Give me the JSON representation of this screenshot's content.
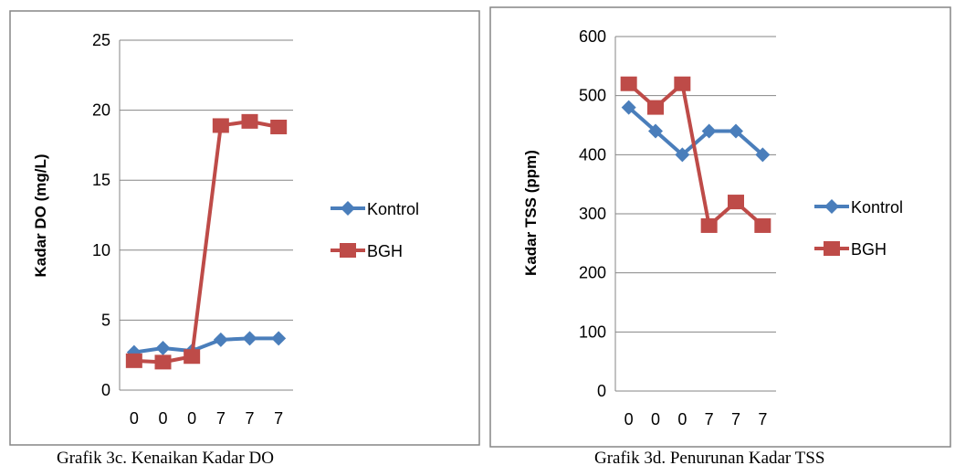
{
  "colors": {
    "kontrol": "#4A7EBB",
    "bgh": "#BE4B48",
    "grid": "#868686",
    "border": "#868686"
  },
  "captions": {
    "left": "Grafik 3c. Kenaikan Kadar DO",
    "right": "Grafik 3d. Penurunan Kadar TSS"
  },
  "chart_data": [
    {
      "type": "line",
      "categories": [
        "0",
        "0",
        "0",
        "7",
        "7",
        "7"
      ],
      "ylabel": "Kadar DO (mg/L)",
      "xlabel": "",
      "ylim": [
        0,
        25
      ],
      "yticks": [
        "0",
        "5",
        "10",
        "15",
        "20",
        "25"
      ],
      "grid": true,
      "legend_position": "right",
      "series": [
        {
          "name": "Kontrol",
          "marker": "diamond",
          "values": [
            2.7,
            3.0,
            2.8,
            3.6,
            3.7,
            3.7
          ]
        },
        {
          "name": "BGH",
          "marker": "square",
          "values": [
            2.1,
            2.0,
            2.4,
            18.9,
            19.2,
            18.8
          ]
        }
      ]
    },
    {
      "type": "line",
      "categories": [
        "0",
        "0",
        "0",
        "7",
        "7",
        "7"
      ],
      "ylabel": "Kadar TSS (ppm)",
      "xlabel": "",
      "ylim": [
        0,
        600
      ],
      "yticks": [
        "0",
        "100",
        "200",
        "300",
        "400",
        "500",
        "600"
      ],
      "grid": true,
      "legend_position": "right",
      "series": [
        {
          "name": "Kontrol",
          "marker": "diamond",
          "values": [
            480,
            440,
            400,
            440,
            440,
            400
          ]
        },
        {
          "name": "BGH",
          "marker": "square",
          "values": [
            520,
            480,
            520,
            280,
            320,
            280
          ]
        }
      ]
    }
  ]
}
